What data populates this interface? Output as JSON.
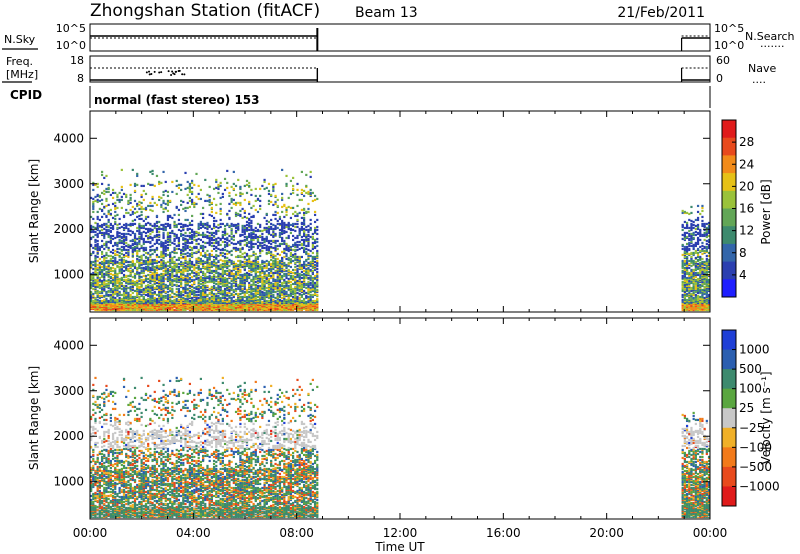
{
  "header": {
    "station": "Zhongshan Station (fitACF)",
    "beam": "Beam 13",
    "date": "21/Feb/2011"
  },
  "panels": {
    "nsky_label": "N.Sky",
    "nsearch_label": "N.Search",
    "freq_label_1": "Freq.",
    "freq_label_2": "[MHz]",
    "nave_label": "Nave",
    "cpid_label": "CPID",
    "cpid_text": "normal (fast stereo) 153",
    "noise_ticks_left": [
      "10^5",
      "10^0"
    ],
    "noise_ticks_right": [
      "10^5",
      "10^0"
    ],
    "freq_ticks": [
      "18",
      "8"
    ],
    "nave_ticks": [
      "60",
      "0"
    ],
    "nsearch_line": "·······",
    "nave_line": "····"
  },
  "chart_data": [
    {
      "type": "heatmap",
      "quantity": "Power",
      "xlabel": "",
      "ylabel": "Slant Range [km]",
      "xlim": [
        0,
        24
      ],
      "ylim": [
        180,
        4600
      ],
      "yticks": [
        "1000",
        "2000",
        "3000",
        "4000"
      ],
      "colorbar_label": "Power [dB]",
      "colorbar_ticks": [
        "4",
        "8",
        "12",
        "16",
        "20",
        "24",
        "28"
      ],
      "colorbar_colors": [
        "#1f1fff",
        "#2b3fb0",
        "#3366aa",
        "#3d8a6e",
        "#62a657",
        "#9ac23a",
        "#e6c117",
        "#f28b1a",
        "#e84a1d",
        "#e01b1b"
      ],
      "data_coverage_hours": [
        [
          0.0,
          8.8
        ],
        [
          22.9,
          24.0
        ]
      ]
    },
    {
      "type": "heatmap",
      "quantity": "Velocity",
      "xlabel": "Time UT",
      "ylabel": "Slant Range [km]",
      "xlim": [
        0,
        24
      ],
      "ylim": [
        180,
        4600
      ],
      "xticks": [
        "00:00",
        "04:00",
        "08:00",
        "12:00",
        "16:00",
        "20:00",
        "00:00"
      ],
      "yticks": [
        "1000",
        "2000",
        "3000",
        "4000"
      ],
      "colorbar_label": "Velocity  [m s⁻¹]",
      "colorbar_ticks": [
        "1000",
        "500",
        "100",
        "25",
        "−25",
        "−100",
        "−500",
        "−1000"
      ],
      "colorbar_colors": [
        "#1f3fd6",
        "#2b5fb0",
        "#3d8a6e",
        "#5aa640",
        "#c8c8c8",
        "#f0b028",
        "#f27a1a",
        "#e84a1d",
        "#e01b1b"
      ],
      "data_coverage_hours": [
        [
          0.0,
          8.8
        ],
        [
          22.9,
          24.0
        ]
      ]
    }
  ]
}
